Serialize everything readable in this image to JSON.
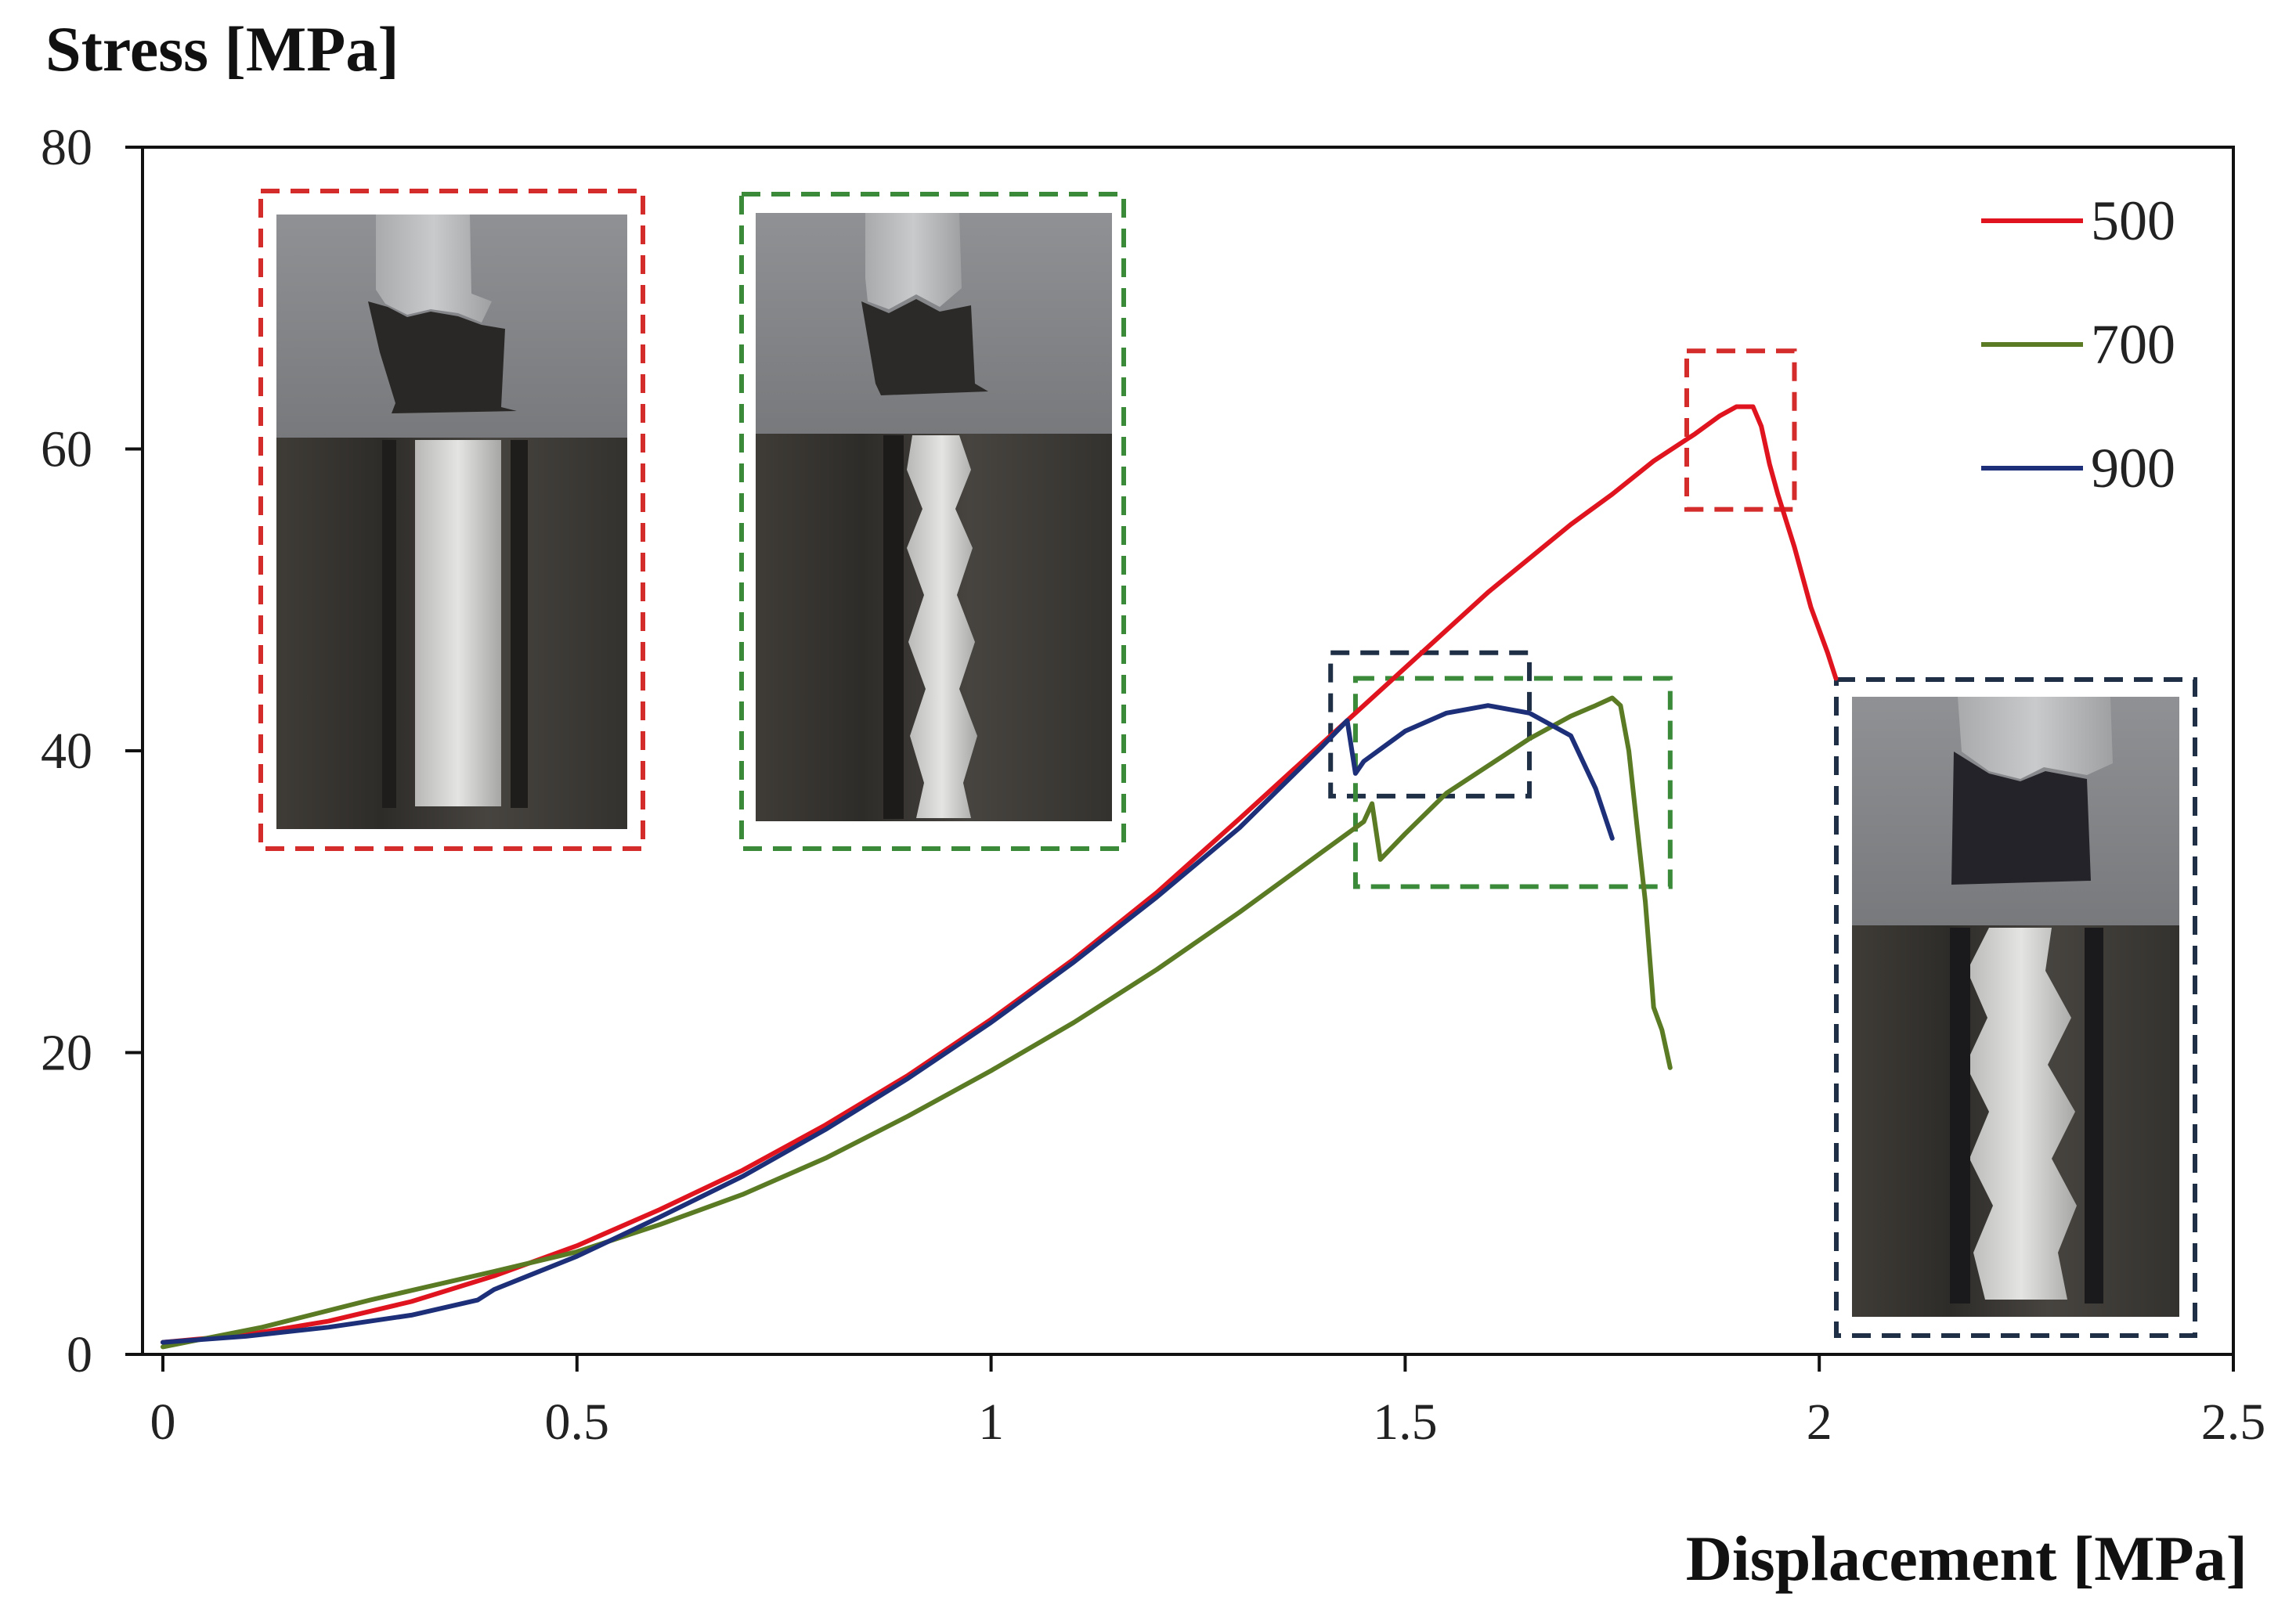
{
  "chart_data": {
    "type": "line",
    "title": "",
    "xlabel": "Displacement [MPa]",
    "ylabel": "Stress [MPa]",
    "xlim": [
      0,
      2.5
    ],
    "ylim": [
      0,
      80
    ],
    "x_ticks": [
      "0",
      "0.5",
      "1",
      "1.5",
      "2",
      "2.5"
    ],
    "y_ticks": [
      "0",
      "20",
      "40",
      "60",
      "80"
    ],
    "grid": false,
    "legend_position": "top-right",
    "series": [
      {
        "name": "500",
        "color": "#e0141e",
        "points": [
          [
            0,
            0.8
          ],
          [
            0.1,
            1.3
          ],
          [
            0.2,
            2.2
          ],
          [
            0.3,
            3.5
          ],
          [
            0.4,
            5.2
          ],
          [
            0.5,
            7.2
          ],
          [
            0.6,
            9.6
          ],
          [
            0.7,
            12.2
          ],
          [
            0.8,
            15.2
          ],
          [
            0.9,
            18.5
          ],
          [
            1.0,
            22.2
          ],
          [
            1.1,
            26.2
          ],
          [
            1.2,
            30.6
          ],
          [
            1.3,
            35.5
          ],
          [
            1.4,
            40.5
          ],
          [
            1.5,
            45.5
          ],
          [
            1.6,
            50.5
          ],
          [
            1.7,
            55.0
          ],
          [
            1.75,
            57.0
          ],
          [
            1.8,
            59.2
          ],
          [
            1.85,
            61.0
          ],
          [
            1.88,
            62.2
          ],
          [
            1.9,
            62.8
          ],
          [
            1.92,
            62.8
          ],
          [
            1.93,
            61.5
          ],
          [
            1.94,
            59.0
          ],
          [
            1.95,
            57.0
          ],
          [
            1.97,
            53.5
          ],
          [
            1.99,
            49.5
          ],
          [
            2.01,
            46.5
          ],
          [
            2.02,
            44.8
          ]
        ]
      },
      {
        "name": "700",
        "color": "#5a7a24",
        "points": [
          [
            0,
            0.5
          ],
          [
            0.12,
            1.8
          ],
          [
            0.25,
            3.6
          ],
          [
            0.4,
            5.5
          ],
          [
            0.5,
            6.8
          ],
          [
            0.6,
            8.6
          ],
          [
            0.7,
            10.6
          ],
          [
            0.8,
            13.0
          ],
          [
            0.9,
            15.8
          ],
          [
            1.0,
            18.8
          ],
          [
            1.1,
            22.0
          ],
          [
            1.2,
            25.5
          ],
          [
            1.3,
            29.3
          ],
          [
            1.4,
            33.3
          ],
          [
            1.45,
            35.3
          ],
          [
            1.46,
            36.5
          ],
          [
            1.47,
            32.8
          ],
          [
            1.5,
            34.5
          ],
          [
            1.55,
            37.2
          ],
          [
            1.6,
            39.0
          ],
          [
            1.65,
            40.8
          ],
          [
            1.7,
            42.3
          ],
          [
            1.73,
            43.0
          ],
          [
            1.75,
            43.5
          ],
          [
            1.76,
            43.0
          ],
          [
            1.77,
            40.0
          ],
          [
            1.78,
            35.0
          ],
          [
            1.79,
            30.0
          ],
          [
            1.8,
            23.0
          ],
          [
            1.81,
            21.5
          ],
          [
            1.82,
            19.0
          ]
        ]
      },
      {
        "name": "900",
        "color": "#1c2f78",
        "points": [
          [
            0,
            0.8
          ],
          [
            0.1,
            1.2
          ],
          [
            0.2,
            1.8
          ],
          [
            0.3,
            2.6
          ],
          [
            0.38,
            3.6
          ],
          [
            0.4,
            4.3
          ],
          [
            0.5,
            6.5
          ],
          [
            0.6,
            9.1
          ],
          [
            0.7,
            11.8
          ],
          [
            0.8,
            14.9
          ],
          [
            0.9,
            18.3
          ],
          [
            1.0,
            22.0
          ],
          [
            1.1,
            26.0
          ],
          [
            1.2,
            30.3
          ],
          [
            1.3,
            34.9
          ],
          [
            1.4,
            40.3
          ],
          [
            1.43,
            42.0
          ],
          [
            1.44,
            38.5
          ],
          [
            1.45,
            39.3
          ],
          [
            1.5,
            41.3
          ],
          [
            1.55,
            42.5
          ],
          [
            1.6,
            43.0
          ],
          [
            1.65,
            42.5
          ],
          [
            1.7,
            41.0
          ],
          [
            1.73,
            37.5
          ],
          [
            1.75,
            34.2
          ]
        ]
      }
    ],
    "annotations": [
      {
        "name": "500",
        "color": "#d42b2b",
        "x_range": [
          1.84,
          1.97
        ],
        "y_range": [
          56,
          66.5
        ]
      },
      {
        "name": "900",
        "color": "#1f3046",
        "x_range": [
          1.41,
          1.65
        ],
        "y_range": [
          37,
          46.5
        ]
      },
      {
        "name": "700",
        "color": "#3a8a3a",
        "x_range": [
          1.44,
          1.82
        ],
        "y_range": [
          31,
          44.8
        ]
      }
    ]
  },
  "insets": [
    {
      "name": "500",
      "color": "#d42b2b"
    },
    {
      "name": "700",
      "color": "#3a8a3a"
    },
    {
      "name": "900",
      "color": "#1f3046"
    }
  ]
}
